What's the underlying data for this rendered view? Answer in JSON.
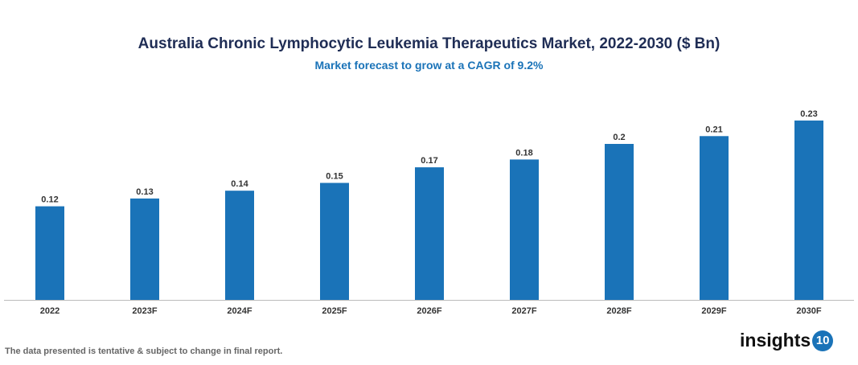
{
  "chart_data": {
    "type": "bar",
    "title": "Australia Chronic Lymphocytic Leukemia Therapeutics Market, 2022-2030 ($ Bn)",
    "subtitle": "Market forecast to grow at a CAGR of 9.2%",
    "categories": [
      "2022",
      "2023F",
      "2024F",
      "2025F",
      "2026F",
      "2027F",
      "2028F",
      "2029F",
      "2030F"
    ],
    "values": [
      0.12,
      0.13,
      0.14,
      0.15,
      0.17,
      0.18,
      0.2,
      0.21,
      0.23
    ],
    "labels": [
      "0.12",
      "0.13",
      "0.14",
      "0.15",
      "0.17",
      "0.18",
      "0.2",
      "0.21",
      "0.23"
    ],
    "ylim": [
      0,
      0.25
    ],
    "grid": false,
    "bar_color": "#1a73b8"
  },
  "footnote": "The data presented is tentative & subject to change in final report.",
  "logo": {
    "text": "insights",
    "badge": "10"
  }
}
